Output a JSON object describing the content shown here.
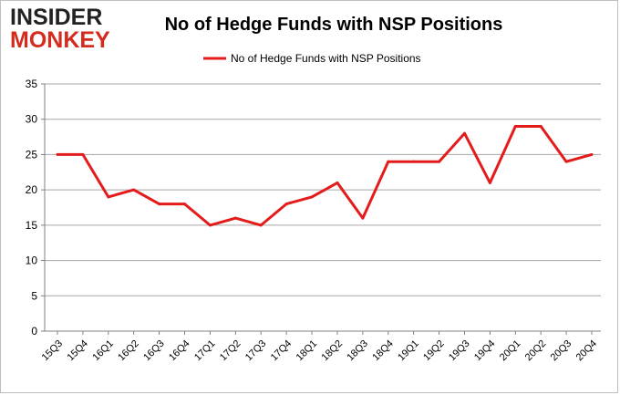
{
  "logo": {
    "line1": "INSIDER",
    "line2": "MONKEY"
  },
  "chart_data": {
    "type": "line",
    "title": "No of Hedge Funds with NSP Positions",
    "xlabel": "",
    "ylabel": "",
    "categories": [
      "15Q3",
      "15Q4",
      "16Q1",
      "16Q2",
      "16Q3",
      "16Q4",
      "17Q1",
      "17Q2",
      "17Q3",
      "17Q4",
      "18Q1",
      "18Q2",
      "18Q3",
      "18Q4",
      "19Q1",
      "19Q2",
      "19Q3",
      "19Q4",
      "20Q1",
      "20Q2",
      "20Q3",
      "20Q4"
    ],
    "series": [
      {
        "name": "No of Hedge Funds with NSP Positions",
        "color": "#e31b1b",
        "values": [
          25,
          25,
          19,
          20,
          18,
          18,
          15,
          16,
          15,
          18,
          19,
          21,
          16,
          24,
          24,
          24,
          28,
          21,
          29,
          29,
          24,
          25
        ]
      }
    ],
    "ylim": [
      0,
      35
    ],
    "yticks": [
      0,
      5,
      10,
      15,
      20,
      25,
      30,
      35
    ],
    "grid": true,
    "legend_position": "top-center"
  }
}
